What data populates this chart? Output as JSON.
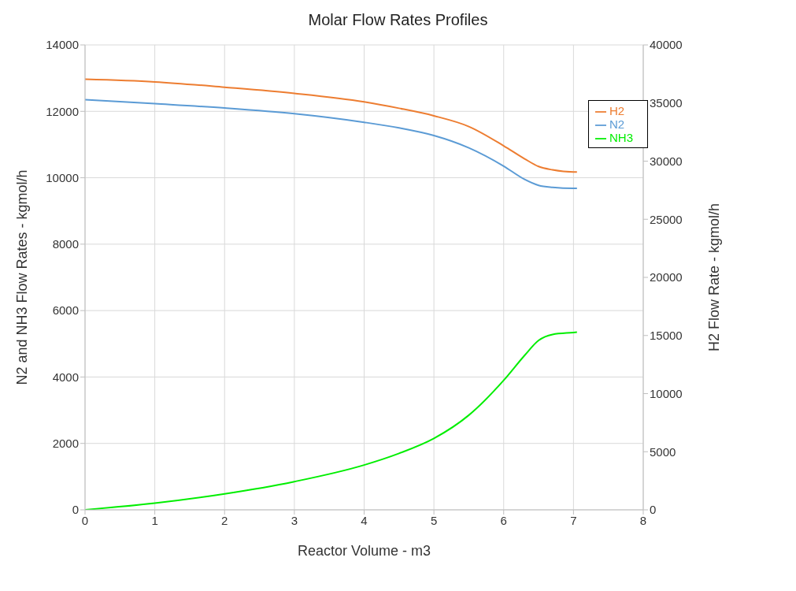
{
  "chart_data": {
    "type": "line",
    "title": "Molar Flow Rates Profiles",
    "xlabel": "Reactor Volume - m3",
    "ylabel": "N2 and NH3 Flow Rates - kgmol/h",
    "y2label": "H2 Flow Rate - kgmol/h",
    "x": [
      0,
      1,
      2,
      3,
      4,
      4.5,
      5,
      5.5,
      6,
      6.3,
      6.5,
      6.7,
      7,
      7.05
    ],
    "series": [
      {
        "name": "N2",
        "color": "#5b9bd5",
        "values": [
          12350,
          12230,
          12100,
          11930,
          11670,
          11500,
          11270,
          10900,
          10350,
          9950,
          9770,
          9710,
          9680,
          9680
        ]
      },
      {
        "name": "NH3",
        "color": "#00ee00",
        "values": [
          0,
          200,
          480,
          850,
          1350,
          1700,
          2150,
          2850,
          3900,
          4650,
          5100,
          5280,
          5340,
          5350
        ]
      },
      {
        "name": "H2",
        "color": "#ed7d31",
        "axis": "y2",
        "values": [
          37050,
          36820,
          36360,
          35830,
          35100,
          34550,
          33900,
          32980,
          31320,
          30200,
          29540,
          29250,
          29070,
          29070
        ]
      }
    ],
    "xlim": [
      0,
      8
    ],
    "xticks": [
      0,
      1,
      2,
      3,
      4,
      5,
      6,
      7,
      8
    ],
    "ylim": [
      0,
      14000
    ],
    "yticks": [
      0,
      2000,
      4000,
      6000,
      8000,
      10000,
      12000,
      14000
    ],
    "y2lim": [
      0,
      40000
    ],
    "y2ticks": [
      0,
      5000,
      10000,
      15000,
      20000,
      25000,
      30000,
      35000,
      40000
    ],
    "grid": true,
    "legend": "top right",
    "marker": "none",
    "line_style": "solid"
  }
}
